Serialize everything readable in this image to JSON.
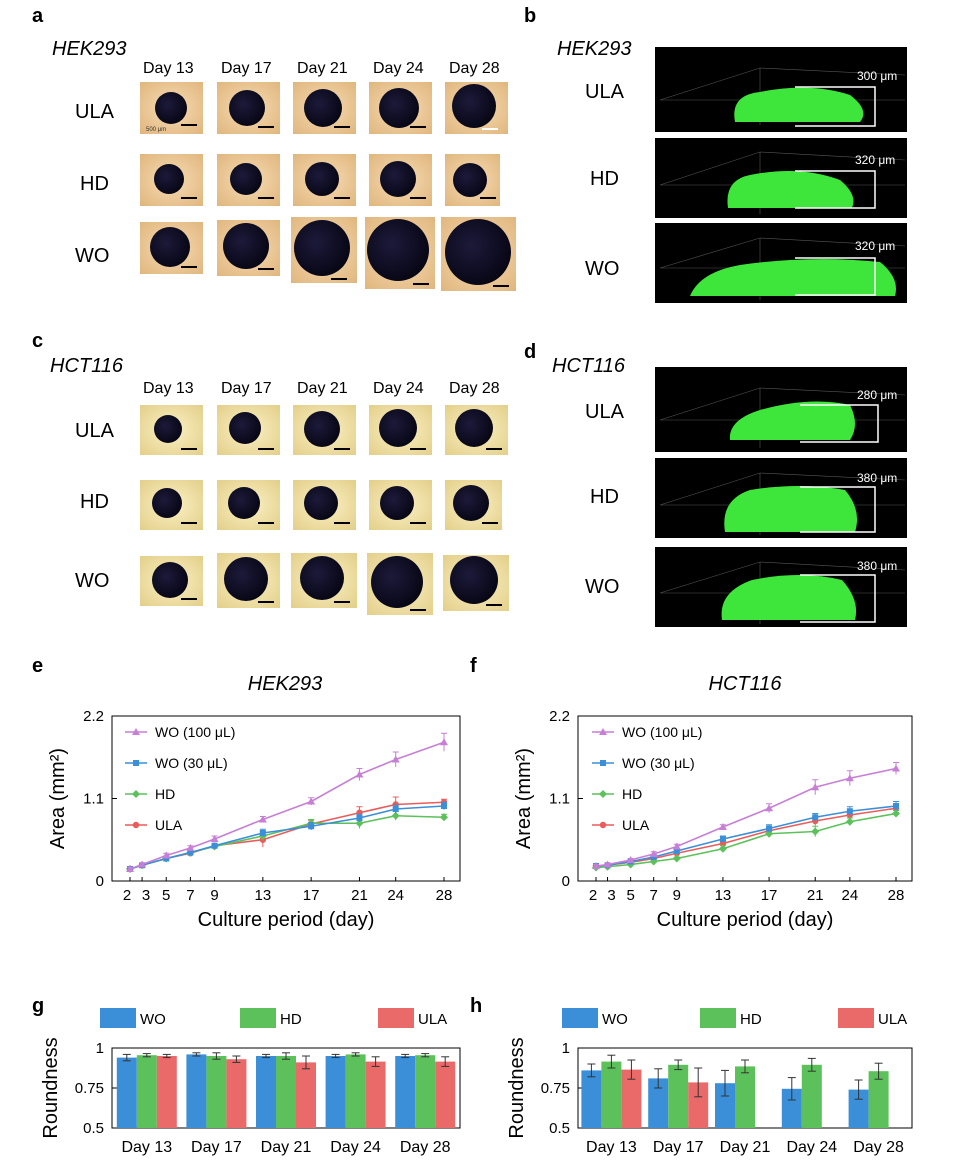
{
  "panels": {
    "a": {
      "letter": "a",
      "title": "HEK293",
      "days": [
        "Day 13",
        "Day 17",
        "Day 21",
        "Day 24",
        "Day 28"
      ],
      "rows": [
        "ULA",
        "HD",
        "WO"
      ],
      "scale_label": "500 μm"
    },
    "b": {
      "letter": "b",
      "title": "HEK293",
      "rows": [
        "ULA",
        "HD",
        "WO"
      ],
      "measures": [
        "300 μm",
        "320 μm",
        "320 μm"
      ]
    },
    "c": {
      "letter": "c",
      "title": "HCT116",
      "days": [
        "Day 13",
        "Day 17",
        "Day 21",
        "Day 24",
        "Day 28"
      ],
      "rows": [
        "ULA",
        "HD",
        "WO"
      ]
    },
    "d": {
      "letter": "d",
      "title": "HCT116",
      "rows": [
        "ULA",
        "HD",
        "WO"
      ],
      "measures": [
        "280 μm",
        "380 μm",
        "380 μm"
      ]
    }
  },
  "colors": {
    "wo100": "#c77fd6",
    "wo30": "#3b8fd9",
    "hd": "#5cc15a",
    "ula": "#ea5c5c",
    "bar_wo": "#3b8fd9",
    "bar_hd": "#5cc15a",
    "bar_ula": "#ea6a6a",
    "tissue": "#3ee63b"
  },
  "chart_data": [
    {
      "id": "e",
      "letter": "e",
      "type": "line",
      "title": "HEK293",
      "xlabel": "Culture period (day)",
      "ylabel": "Area (mm²)",
      "ylim": [
        0,
        2.2
      ],
      "yticks": [
        "0",
        "1.1",
        "2.2"
      ],
      "x": [
        2,
        3,
        5,
        7,
        9,
        13,
        17,
        21,
        24,
        28
      ],
      "xtick_labels": [
        "2",
        "3",
        "5",
        "7",
        "9",
        "13",
        "17",
        "21",
        "24",
        "28"
      ],
      "series": [
        {
          "name": "WO (100 μL)",
          "key": "wo100",
          "marker": "triangle",
          "values": [
            0.16,
            0.22,
            0.34,
            0.44,
            0.56,
            0.82,
            1.06,
            1.42,
            1.62,
            1.85
          ],
          "err": [
            0.02,
            0.02,
            0.03,
            0.03,
            0.04,
            0.04,
            0.05,
            0.08,
            0.1,
            0.12
          ]
        },
        {
          "name": "WO (30 μL)",
          "key": "wo30",
          "marker": "square",
          "values": [
            0.16,
            0.21,
            0.3,
            0.38,
            0.47,
            0.64,
            0.73,
            0.84,
            0.96,
            1.0
          ],
          "err": [
            0.02,
            0.02,
            0.02,
            0.03,
            0.03,
            0.05,
            0.05,
            0.05,
            0.06,
            0.05
          ]
        },
        {
          "name": "HD",
          "key": "hd",
          "marker": "diamond",
          "values": [
            0.16,
            0.21,
            0.3,
            0.38,
            0.46,
            0.6,
            0.77,
            0.77,
            0.87,
            0.85
          ],
          "err": [
            0.02,
            0.02,
            0.02,
            0.03,
            0.03,
            0.06,
            0.05,
            0.07,
            0.06,
            0.04
          ]
        },
        {
          "name": "ULA",
          "key": "ula",
          "marker": "circle",
          "values": [
            0.16,
            0.21,
            0.3,
            0.37,
            0.47,
            0.55,
            0.76,
            0.91,
            1.02,
            1.05
          ],
          "err": [
            0.02,
            0.02,
            0.02,
            0.03,
            0.03,
            0.1,
            0.05,
            0.08,
            0.1,
            0.04
          ]
        }
      ]
    },
    {
      "id": "f",
      "letter": "f",
      "type": "line",
      "title": "HCT116",
      "xlabel": "Culture period (day)",
      "ylabel": "Area (mm²)",
      "ylim": [
        0,
        2.2
      ],
      "yticks": [
        "0",
        "1.1",
        "2.2"
      ],
      "x": [
        2,
        3,
        5,
        7,
        9,
        13,
        17,
        21,
        24,
        28
      ],
      "xtick_labels": [
        "2",
        "3",
        "5",
        "7",
        "9",
        "13",
        "17",
        "21",
        "24",
        "28"
      ],
      "series": [
        {
          "name": "WO (100 μL)",
          "key": "wo100",
          "marker": "triangle",
          "values": [
            0.2,
            0.22,
            0.28,
            0.36,
            0.46,
            0.72,
            0.97,
            1.25,
            1.37,
            1.5
          ],
          "err": [
            0.02,
            0.02,
            0.02,
            0.03,
            0.03,
            0.03,
            0.06,
            0.1,
            0.1,
            0.08
          ]
        },
        {
          "name": "WO (30 μL)",
          "key": "wo30",
          "marker": "square",
          "values": [
            0.2,
            0.21,
            0.26,
            0.32,
            0.4,
            0.56,
            0.7,
            0.85,
            0.93,
            1.0
          ],
          "err": [
            0.02,
            0.02,
            0.02,
            0.02,
            0.03,
            0.04,
            0.05,
            0.05,
            0.06,
            0.06
          ]
        },
        {
          "name": "HD",
          "key": "hd",
          "marker": "diamond",
          "values": [
            0.18,
            0.19,
            0.22,
            0.26,
            0.3,
            0.43,
            0.63,
            0.66,
            0.79,
            0.9
          ],
          "err": [
            0.02,
            0.02,
            0.02,
            0.02,
            0.02,
            0.04,
            0.05,
            0.07,
            0.05,
            0.04
          ]
        },
        {
          "name": "ULA",
          "key": "ula",
          "marker": "circle",
          "values": [
            0.2,
            0.21,
            0.25,
            0.3,
            0.37,
            0.5,
            0.67,
            0.8,
            0.88,
            0.97
          ],
          "err": [
            0.02,
            0.02,
            0.02,
            0.02,
            0.03,
            0.04,
            0.05,
            0.06,
            0.05,
            0.05
          ]
        }
      ]
    },
    {
      "id": "g",
      "letter": "g",
      "type": "bar",
      "ylabel": "Roundness",
      "ylim": [
        0.5,
        1
      ],
      "yticks": [
        "0.5",
        "0.75",
        "1"
      ],
      "categories": [
        "Day 13",
        "Day 17",
        "Day 21",
        "Day 24",
        "Day 28"
      ],
      "series": [
        {
          "name": "WO",
          "key": "bar_wo",
          "values": [
            0.94,
            0.96,
            0.95,
            0.95,
            0.95
          ],
          "err": [
            0.02,
            0.01,
            0.01,
            0.01,
            0.01
          ]
        },
        {
          "name": "HD",
          "key": "bar_hd",
          "values": [
            0.955,
            0.95,
            0.95,
            0.96,
            0.955
          ],
          "err": [
            0.01,
            0.02,
            0.02,
            0.01,
            0.01
          ]
        },
        {
          "name": "ULA",
          "key": "bar_ula",
          "values": [
            0.95,
            0.93,
            0.91,
            0.915,
            0.915
          ],
          "err": [
            0.01,
            0.02,
            0.04,
            0.03,
            0.03
          ]
        }
      ]
    },
    {
      "id": "h",
      "letter": "h",
      "type": "bar",
      "ylabel": "Roundness",
      "ylim": [
        0.5,
        1
      ],
      "yticks": [
        "0.5",
        "0.75",
        "1"
      ],
      "categories": [
        "Day 13",
        "Day 17",
        "Day 21",
        "Day 24",
        "Day 28"
      ],
      "series": [
        {
          "name": "WO",
          "key": "bar_wo",
          "values": [
            0.86,
            0.81,
            0.78,
            0.745,
            0.74
          ],
          "err": [
            0.04,
            0.06,
            0.08,
            0.07,
            0.06
          ]
        },
        {
          "name": "HD",
          "key": "bar_hd",
          "values": [
            0.915,
            0.895,
            0.885,
            0.895,
            0.855
          ],
          "err": [
            0.04,
            0.03,
            0.04,
            0.04,
            0.05
          ]
        },
        {
          "name": "ULA",
          "key": "bar_ula",
          "values": [
            0.865,
            0.785,
            null,
            null,
            null
          ],
          "err": [
            0.06,
            0.09,
            null,
            null,
            null
          ]
        }
      ]
    }
  ]
}
